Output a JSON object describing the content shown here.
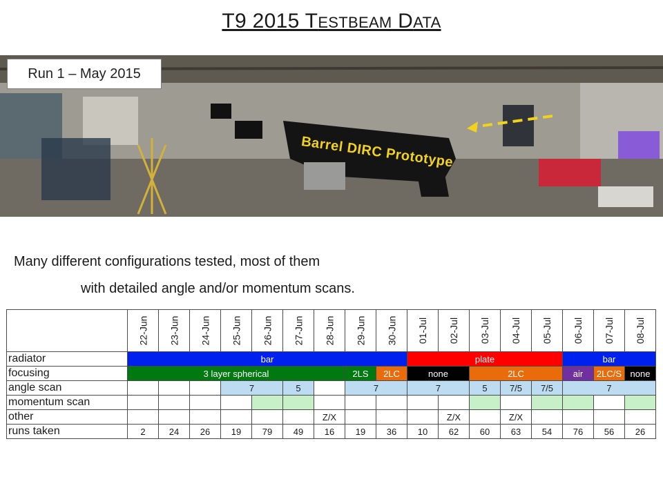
{
  "title": {
    "first": "T9 2015 T",
    "sc1": "ESTBEAM",
    "mid": " D",
    "sc2": "ATA"
  },
  "photo": {
    "run_label": "Run 1 – May 2015",
    "annotation": "Barrel DIRC Prototype"
  },
  "description": {
    "line1": "Many different configurations tested, most of them",
    "line2": "with detailed angle and/or momentum scans."
  },
  "table": {
    "dates": [
      "22-Jun",
      "23-Jun",
      "24-Jun",
      "25-Jun",
      "26-Jun",
      "27-Jun",
      "28-Jun",
      "29-Jun",
      "30-Jun",
      "01-Jul",
      "02-Jul",
      "03-Jul",
      "04-Jul",
      "05-Jul",
      "06-Jul",
      "07-Jul",
      "08-Jul"
    ],
    "rows": {
      "radiator": {
        "label": "radiator",
        "cells": [
          "bar",
          "plate",
          "bar"
        ]
      },
      "focusing": {
        "label": "focusing",
        "cells": [
          "3 layer spherical",
          "2LS",
          "2LC",
          "none",
          "2LC",
          "air",
          "2LC/S",
          "none"
        ]
      },
      "angle_scan": {
        "label": "angle scan",
        "cells": [
          "7",
          "5",
          "7",
          "7",
          "5",
          "7/5",
          "7/5",
          "7"
        ]
      },
      "momentum_scan": {
        "label": "momentum scan"
      },
      "other": {
        "label": "other",
        "cells": [
          "Z/X",
          "Z/X",
          "Z/X"
        ]
      },
      "runs_taken": {
        "label": "runs taken",
        "cells": [
          "2",
          "24",
          "26",
          "19",
          "79",
          "49",
          "16",
          "19",
          "36",
          "10",
          "62",
          "60",
          "63",
          "54",
          "76",
          "56",
          "26"
        ]
      }
    }
  },
  "colors": {
    "bar": "#0020f0",
    "plate": "#ff0000",
    "spherical": "#007a10",
    "lc": "#ea6b0a",
    "air": "#7030a0",
    "none": "#000000",
    "angle_scan": "#bddcf2",
    "momentum_scan": "#c8f0c8",
    "annotation": "#f2d21a"
  }
}
